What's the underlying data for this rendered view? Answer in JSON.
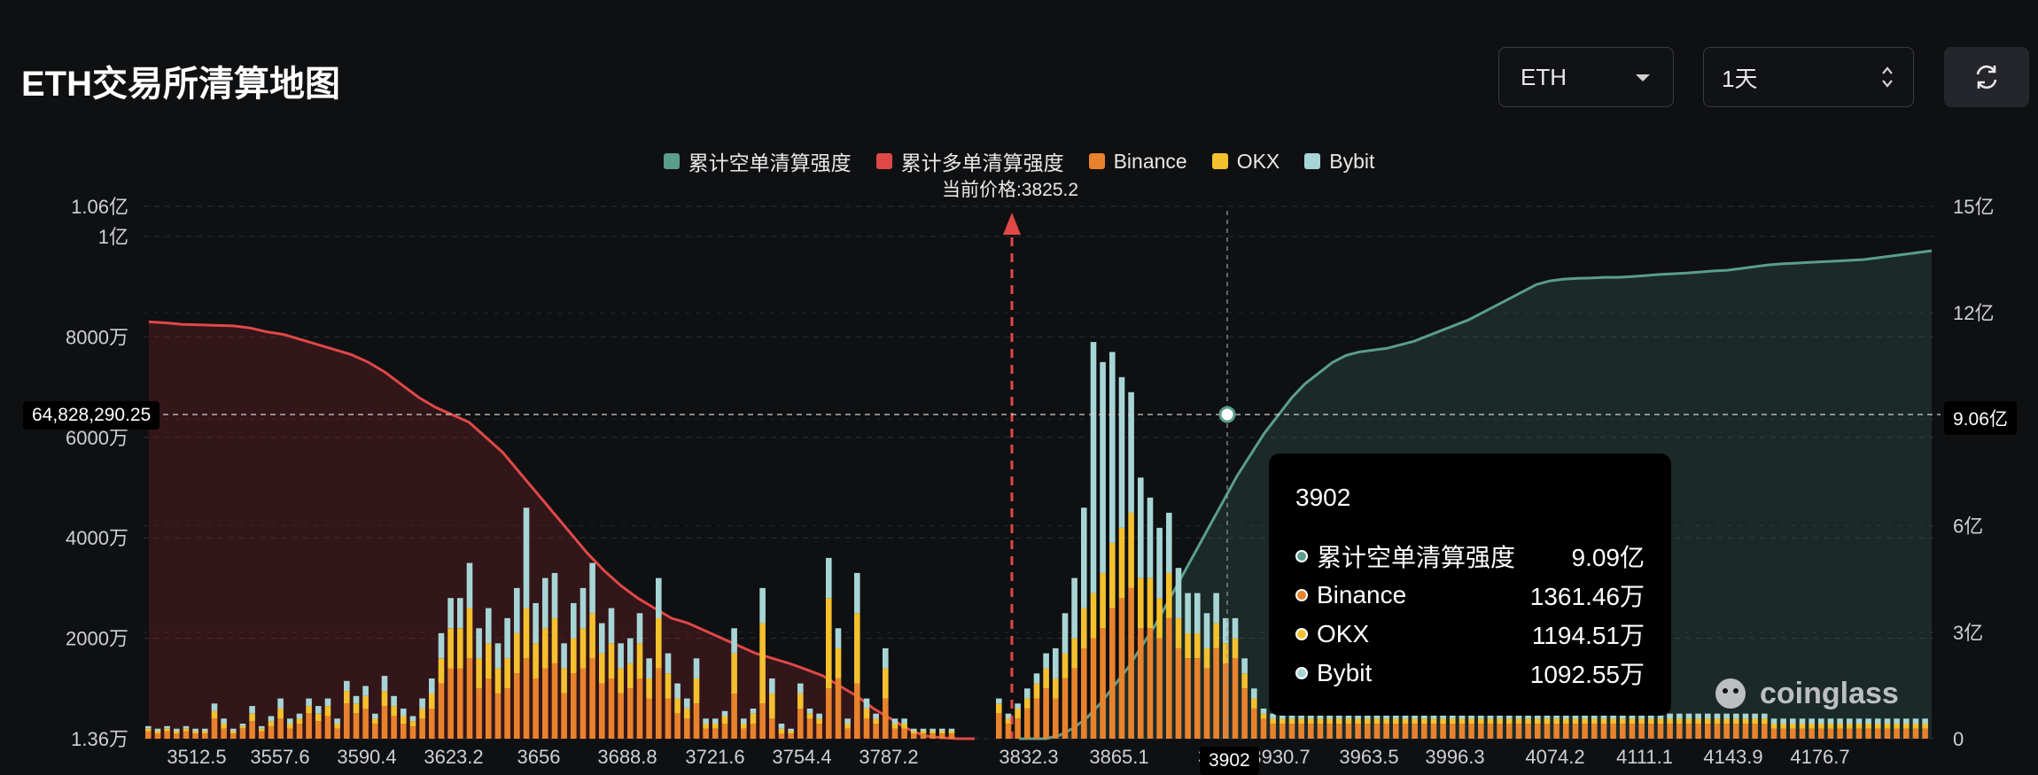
{
  "header": {
    "title": "ETH交易所清算地图",
    "coin_select": "ETH",
    "period_select": "1天"
  },
  "chart_data": {
    "type": "bar",
    "legend": [
      {
        "name": "累计空单清算强度",
        "color": "#5a9e8a"
      },
      {
        "name": "累计多单清算强度",
        "color": "#e04848"
      },
      {
        "name": "Binance",
        "color": "#e8822c"
      },
      {
        "name": "OKX",
        "color": "#f5c02e"
      },
      {
        "name": "Bybit",
        "color": "#a7d5d6"
      }
    ],
    "current_price_label": "当前价格:3825.2",
    "current_price": 3825.2,
    "x_ticks": [
      "3512.5",
      "3557.6",
      "3590.4",
      "3623.2",
      "3656",
      "3688.8",
      "3721.6",
      "3754.4",
      "3787.2",
      "3832.3",
      "3865.1",
      "3",
      "3930.7",
      "3963.5",
      "3996.3",
      "4074.2",
      "4111.1",
      "4143.9",
      "4176.7"
    ],
    "y_left_ticks": [
      "1.06亿",
      "1亿",
      "8000万",
      "6000万",
      "4000万",
      "2000万",
      "1.36万"
    ],
    "y_right_ticks": [
      "15亿",
      "12亿",
      "9亿",
      "6亿",
      "3亿",
      "0"
    ],
    "y_left_range": [
      0,
      106000000
    ],
    "y_right_range": [
      0,
      1500000000
    ],
    "crosshair": {
      "price": "3902",
      "left_value": "64,828,290.25",
      "right_value": "9.06亿"
    },
    "tooltip": {
      "title": "3902",
      "rows": [
        {
          "label": "累计空单清算强度",
          "value": "9.09亿",
          "color": "#5a9e8a"
        },
        {
          "label": "Binance",
          "value": "1361.46万",
          "color": "#e8822c"
        },
        {
          "label": "OKX",
          "value": "1194.51万",
          "color": "#f5c02e"
        },
        {
          "label": "Bybit",
          "value": "1092.55万",
          "color": "#a7d5d6"
        }
      ]
    },
    "bars_binance": [
      1.5,
      1,
      1.5,
      1,
      1.5,
      1,
      1,
      4,
      2,
      1,
      2,
      3.5,
      1.5,
      2.5,
      4,
      2,
      3,
      5,
      3.5,
      4.5,
      2,
      7,
      5,
      6,
      3,
      6.5,
      4.5,
      3,
      2.5,
      4,
      6,
      11,
      14,
      14,
      16,
      10,
      12,
      9,
      10,
      13,
      16,
      12,
      14,
      15,
      9,
      13,
      14,
      16,
      11,
      12,
      9,
      10,
      12,
      8,
      14,
      8,
      5,
      4,
      7,
      2,
      2,
      3,
      9,
      2,
      3,
      7,
      4,
      1,
      1,
      6,
      4,
      3,
      10,
      12,
      2,
      11,
      4,
      3,
      8,
      2,
      2,
      1,
      1,
      1,
      1,
      1,
      0,
      0,
      0,
      0,
      5,
      3,
      4,
      6,
      8,
      10,
      8,
      12,
      14,
      18,
      20,
      22,
      26,
      28,
      30,
      22,
      22,
      20,
      24,
      18,
      16,
      16,
      14,
      18,
      15,
      16,
      10,
      6,
      4,
      3,
      3,
      3,
      3,
      3,
      3,
      3,
      3,
      3,
      3,
      3,
      3,
      3,
      3,
      3,
      3,
      3,
      3,
      3,
      3,
      3,
      3,
      3,
      3,
      3,
      3,
      3,
      3,
      3,
      3,
      3,
      3,
      3,
      3,
      3,
      3,
      3,
      3,
      3,
      3,
      3,
      3,
      3,
      3,
      3,
      3,
      3,
      3,
      3,
      3,
      3,
      3,
      3,
      2,
      2,
      2,
      2,
      2,
      2,
      2,
      2,
      2,
      2,
      2,
      2,
      2,
      2,
      2,
      2,
      2
    ],
    "bars_okx": [
      0.5,
      0.5,
      0.5,
      0.5,
      0.5,
      0.5,
      0.5,
      1.5,
      1,
      0.5,
      0.5,
      1.5,
      0.5,
      1,
      2,
      1,
      1,
      1.5,
      1.5,
      2,
      1,
      2.5,
      2,
      2.5,
      1,
      3,
      2,
      1.5,
      1,
      2,
      3,
      5,
      8,
      8,
      10,
      6,
      7,
      5,
      6,
      8,
      10,
      7,
      8,
      9,
      5,
      7,
      8,
      9,
      6,
      7,
      5,
      5,
      7,
      4,
      10,
      5,
      3,
      2,
      5,
      1,
      1,
      1.5,
      8,
      1,
      2,
      16,
      5,
      1,
      0.5,
      3,
      1,
      1,
      18,
      6,
      1,
      14,
      2,
      1,
      6,
      1,
      1,
      0.5,
      0.5,
      0.5,
      0.5,
      0.5,
      0,
      0,
      0,
      0,
      2,
      1,
      2,
      2,
      3,
      4,
      4,
      5,
      6,
      8,
      9,
      11,
      13,
      14,
      15,
      10,
      10,
      8,
      9,
      6,
      5,
      5,
      4,
      5,
      4,
      4,
      3,
      2,
      1,
      1,
      1,
      1,
      1,
      1,
      1,
      1,
      1,
      1,
      1,
      1,
      1,
      1,
      1,
      1,
      1,
      1,
      1,
      1,
      1,
      1,
      1,
      1,
      1,
      1,
      1,
      1,
      1,
      1,
      1,
      1,
      1,
      1,
      1,
      1,
      1,
      1,
      1,
      1,
      1,
      1,
      1,
      1,
      1,
      1,
      1,
      1,
      1,
      1,
      1,
      1,
      1,
      1,
      1,
      1,
      1,
      1,
      1,
      1,
      1,
      1,
      1,
      1,
      1,
      1,
      1,
      1,
      1,
      1,
      1,
      1,
      1
    ],
    "bars_bybit": [
      0.5,
      0.5,
      0.5,
      0.5,
      0.5,
      0.5,
      0.5,
      1.5,
      1,
      0.5,
      0.5,
      1.5,
      0.5,
      1,
      2,
      1,
      1,
      1.5,
      1.5,
      1.5,
      1,
      2,
      1.5,
      2,
      1,
      3,
      2,
      1.5,
      1,
      2,
      3,
      5,
      6,
      6,
      9,
      6,
      7,
      5,
      8,
      9,
      20,
      8,
      10,
      9,
      5,
      7,
      8,
      10,
      6,
      7,
      5,
      5,
      6,
      4,
      8,
      4,
      3,
      2,
      4,
      1,
      1,
      1,
      5,
      1,
      1,
      7,
      3,
      1,
      0.5,
      2,
      1,
      1,
      8,
      4,
      1,
      8,
      2,
      1,
      4,
      1,
      1,
      0.5,
      0.5,
      0.5,
      0.5,
      0.5,
      0,
      0,
      0,
      0,
      1,
      1,
      1,
      2,
      2,
      3,
      6,
      8,
      12,
      20,
      50,
      42,
      38,
      30,
      24,
      20,
      16,
      14,
      12,
      10,
      8,
      8,
      7,
      6,
      5,
      4,
      3,
      2,
      1,
      1,
      1,
      1,
      1,
      1,
      1,
      1,
      1,
      1,
      1,
      1,
      1,
      1,
      1,
      1,
      1,
      1,
      1,
      1,
      1,
      1,
      1,
      1,
      1,
      1,
      1,
      1,
      1,
      1,
      1,
      1,
      1,
      1,
      1,
      1,
      1,
      1,
      1,
      1,
      1,
      1,
      1,
      1,
      1,
      1,
      1,
      1,
      1,
      1,
      1,
      1,
      1,
      1,
      1,
      1,
      1,
      1,
      1,
      1,
      1,
      1,
      1,
      1,
      1,
      1,
      1,
      1,
      1,
      1,
      1,
      1,
      1
    ],
    "short_cumulative_yi": [
      0,
      0,
      0,
      0.1,
      0.3,
      0.6,
      1.0,
      1.5,
      2.0,
      2.6,
      3.2,
      3.9,
      4.6,
      5.3,
      6.0,
      6.7,
      7.4,
      8.0,
      8.6,
      9.1,
      9.6,
      10.0,
      10.3,
      10.6,
      10.8,
      10.9,
      10.95,
      11.0,
      11.1,
      11.2,
      11.35,
      11.5,
      11.65,
      11.8,
      12.0,
      12.2,
      12.4,
      12.6,
      12.8,
      12.9,
      12.95,
      12.97,
      12.98,
      13.0,
      13.0,
      13.02,
      13.05,
      13.08,
      13.1,
      13.12,
      13.15,
      13.18,
      13.2,
      13.25,
      13.3,
      13.35,
      13.38,
      13.4,
      13.42,
      13.44,
      13.46,
      13.48,
      13.5,
      13.55,
      13.6,
      13.65,
      13.7,
      13.75
    ],
    "long_cumulative_wan": [
      8300,
      8280,
      8250,
      8240,
      8230,
      8220,
      8180,
      8100,
      8050,
      7950,
      7850,
      7750,
      7650,
      7500,
      7300,
      7050,
      6800,
      6600,
      6450,
      6300,
      6000,
      5700,
      5300,
      4900,
      4500,
      4100,
      3700,
      3350,
      3050,
      2800,
      2600,
      2400,
      2300,
      2150,
      2000,
      1850,
      1700,
      1600,
      1500,
      1380,
      1250,
      1050,
      850,
      600,
      400,
      200,
      60,
      20,
      0,
      0
    ]
  }
}
